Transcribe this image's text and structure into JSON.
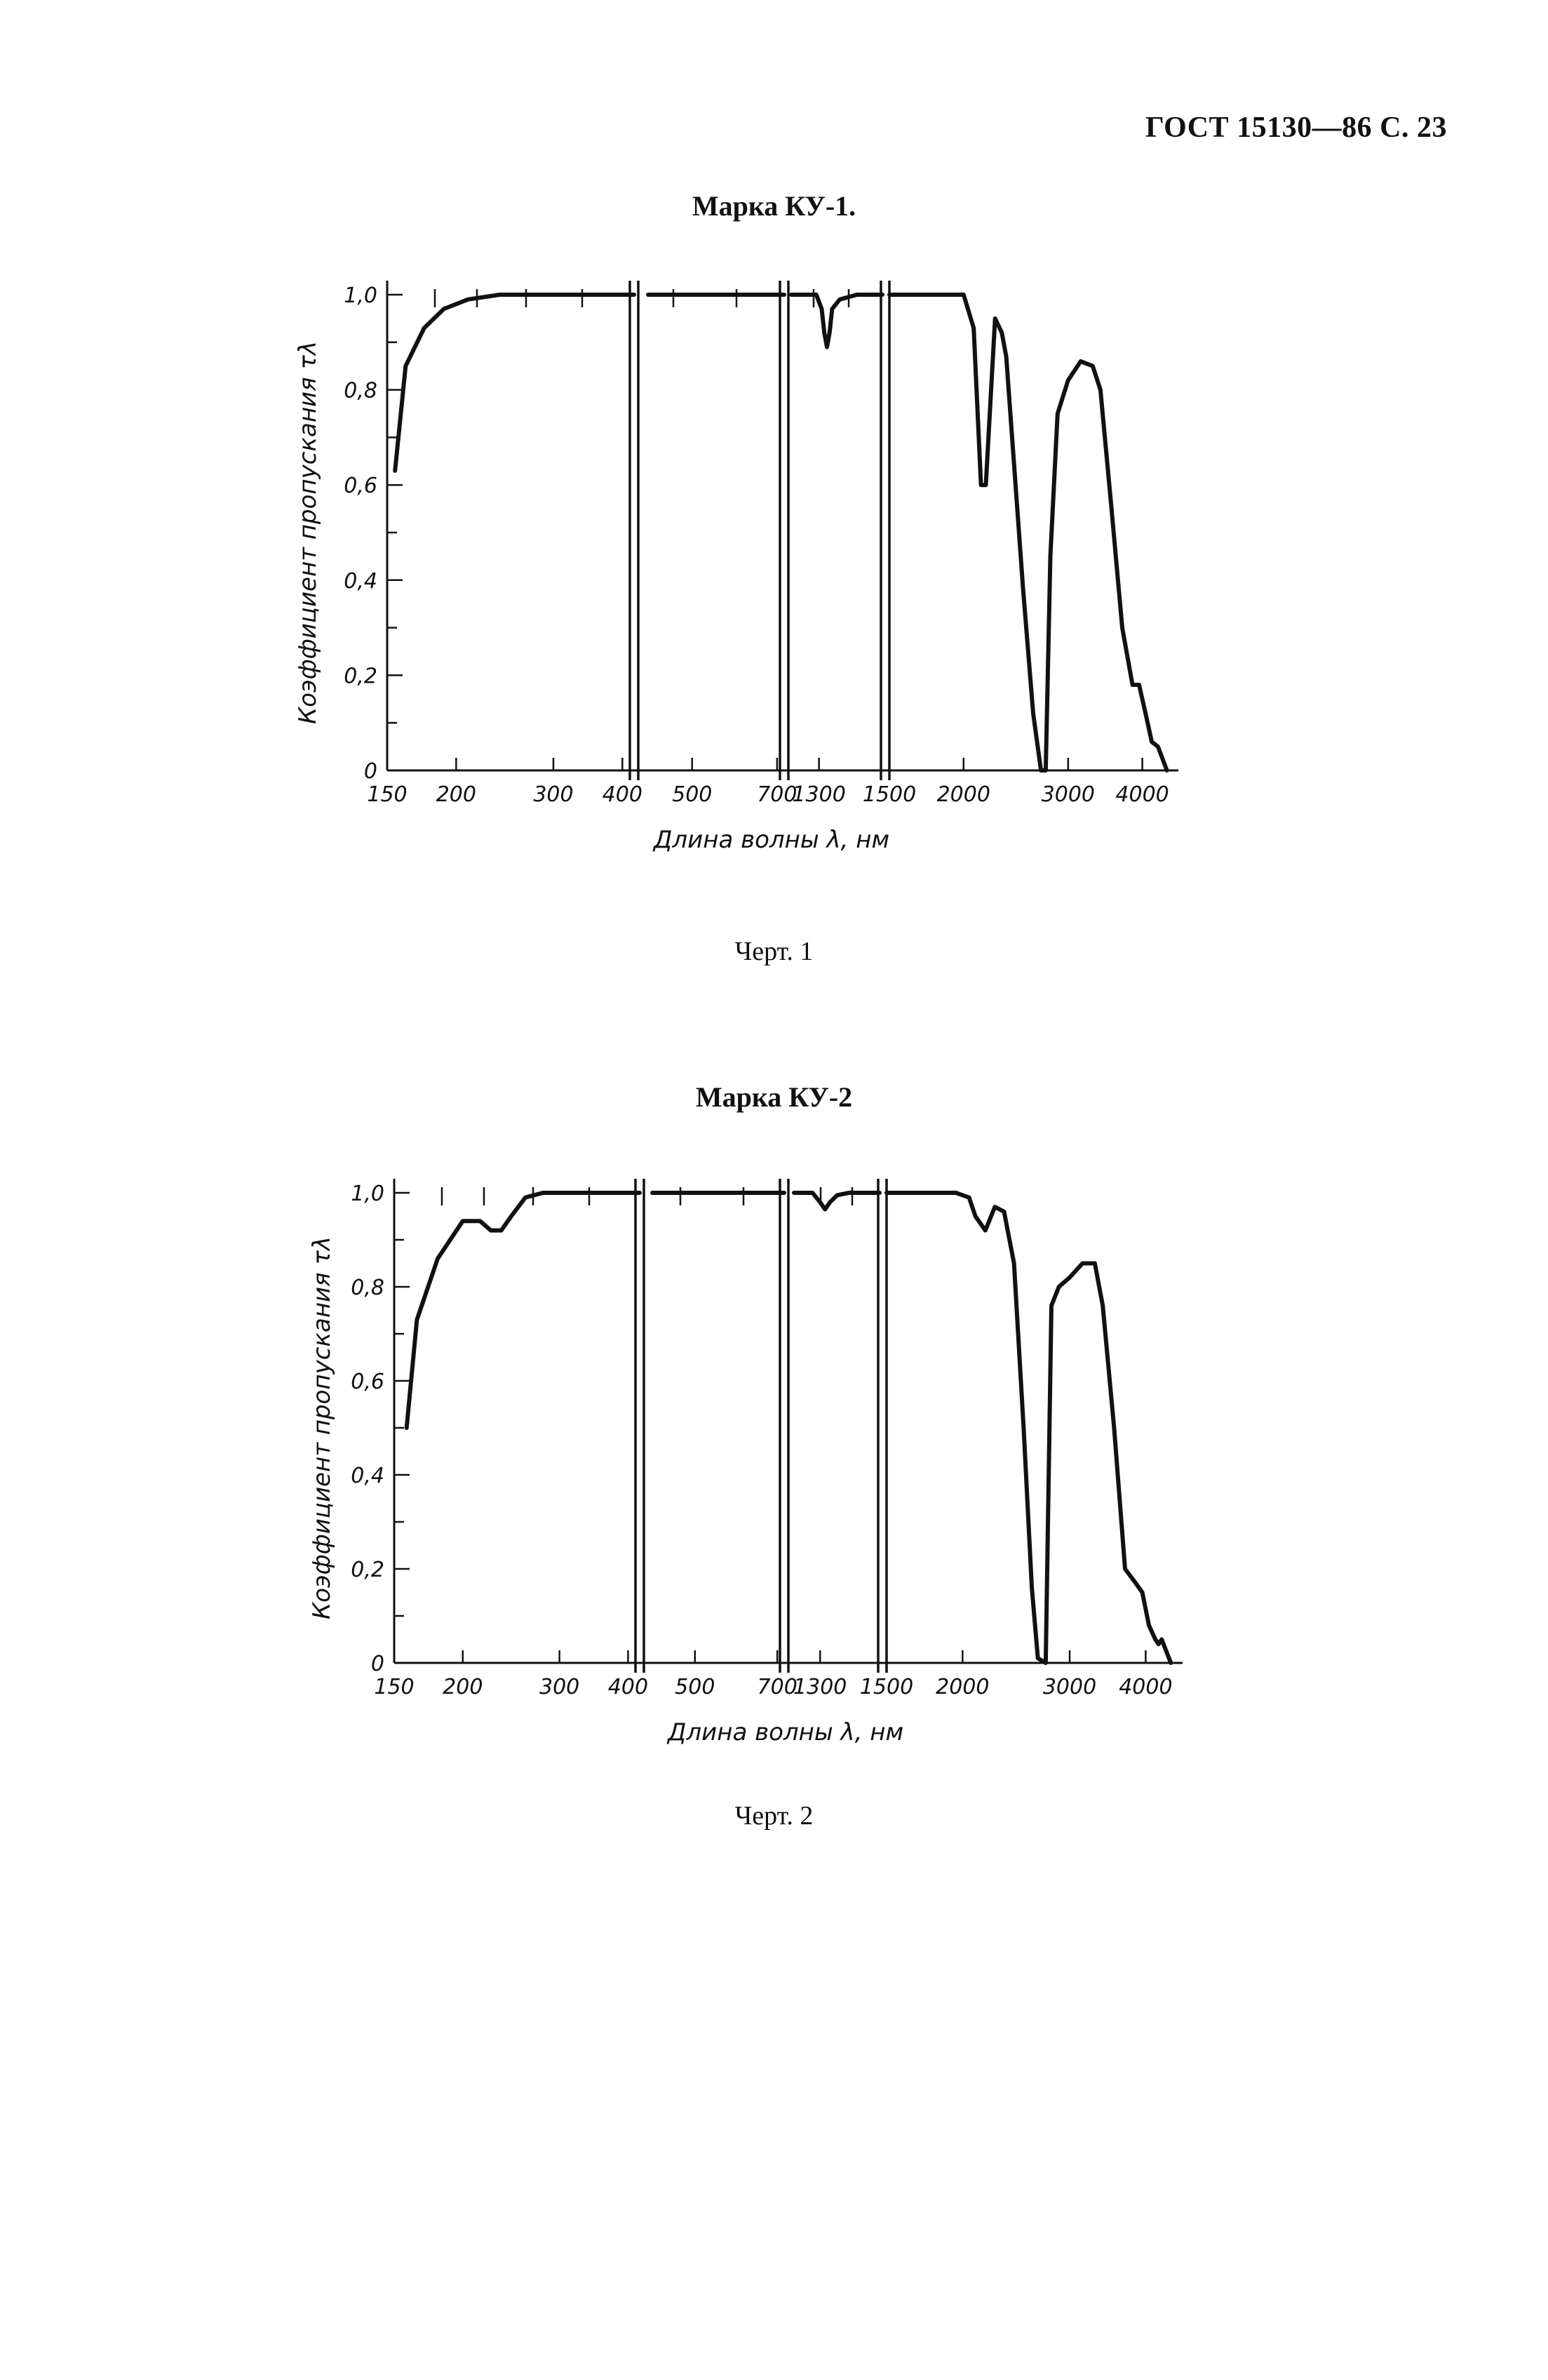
{
  "document": {
    "header": "ГОСТ 15130—86 С. 23",
    "captions": [
      "Черт. 1",
      "Черт. 2"
    ]
  },
  "chart_data": [
    {
      "type": "line",
      "title": "Марка КУ-1.",
      "xlabel": "Длина волны λ, нм",
      "ylabel": "Коэффициент пропускания τλ",
      "ylim": [
        0,
        1.0
      ],
      "yticks": [
        0,
        0.2,
        0.4,
        0.6,
        0.8,
        1.0
      ],
      "ytick_labels": [
        "0",
        "0,2",
        "0,4",
        "0,6",
        "0,8",
        "1,0"
      ],
      "segments": [
        {
          "xlim": [
            150,
            420
          ],
          "xticks": [
            150,
            200,
            300,
            400
          ],
          "xtick_labels": [
            "150",
            "200",
            "300",
            "400"
          ]
        },
        {
          "xlim": [
            420,
            720
          ],
          "xticks": [
            500,
            700
          ],
          "xtick_labels": [
            "500",
            "700"
          ]
        },
        {
          "xlim": [
            1200,
            1560
          ],
          "xticks": [
            1300
          ],
          "xtick_labels": [
            "1300"
          ]
        },
        {
          "xlim": [
            1500,
            4600
          ],
          "xticks": [
            1500,
            2000,
            3000,
            4000
          ],
          "xtick_labels": [
            "1500",
            "2000",
            "3000",
            "4000"
          ]
        }
      ],
      "series": [
        {
          "segment": 0,
          "x": [
            155,
            162,
            175,
            190,
            210,
            240,
            280,
            340,
            400,
            420
          ],
          "y": [
            0.63,
            0.85,
            0.93,
            0.97,
            0.99,
            1.0,
            1.0,
            1.0,
            1.0,
            1.0
          ]
        },
        {
          "segment": 1,
          "x": [
            420,
            500,
            600,
            720
          ],
          "y": [
            1.0,
            1.0,
            1.0,
            1.0
          ]
        },
        {
          "segment": 2,
          "x": [
            1200,
            1290,
            1310,
            1320,
            1330,
            1340,
            1350,
            1380,
            1450,
            1560
          ],
          "y": [
            1.0,
            1.0,
            0.97,
            0.92,
            0.89,
            0.92,
            0.97,
            0.99,
            1.0,
            1.0
          ]
        },
        {
          "segment": 3,
          "x": [
            1500,
            1800,
            2000,
            2080,
            2140,
            2180,
            2260,
            2320,
            2360,
            2440,
            2520,
            2620,
            2700,
            2750,
            2800,
            2880,
            3000,
            3150,
            3300,
            3400,
            3550,
            3700,
            3850,
            3950,
            4050,
            4150,
            4250,
            4400
          ],
          "y": [
            1.0,
            1.0,
            1.0,
            0.93,
            0.6,
            0.6,
            0.95,
            0.92,
            0.87,
            0.62,
            0.38,
            0.12,
            0.0,
            0.0,
            0.45,
            0.75,
            0.82,
            0.86,
            0.85,
            0.8,
            0.55,
            0.3,
            0.18,
            0.18,
            0.12,
            0.06,
            0.05,
            0.0
          ]
        }
      ]
    },
    {
      "type": "line",
      "title": "Марка КУ-2",
      "xlabel": "Длина волны λ, нм",
      "ylabel": "Коэффициент пропускания τλ",
      "ylim": [
        0,
        1.0
      ],
      "yticks": [
        0,
        0.2,
        0.4,
        0.6,
        0.8,
        1.0
      ],
      "ytick_labels": [
        "0",
        "0,2",
        "0,4",
        "0,6",
        "0,8",
        "1,0"
      ],
      "segments": [
        {
          "xlim": [
            150,
            420
          ],
          "xticks": [
            150,
            200,
            300,
            400
          ],
          "xtick_labels": [
            "150",
            "200",
            "300",
            "400"
          ]
        },
        {
          "xlim": [
            420,
            720
          ],
          "xticks": [
            500,
            700
          ],
          "xtick_labels": [
            "500",
            "700"
          ]
        },
        {
          "xlim": [
            1200,
            1560
          ],
          "xticks": [
            1300
          ],
          "xtick_labels": [
            "1300"
          ]
        },
        {
          "xlim": [
            1500,
            4600
          ],
          "xticks": [
            1500,
            2000,
            3000,
            4000
          ],
          "xtick_labels": [
            "1500",
            "2000",
            "3000",
            "4000"
          ]
        }
      ],
      "series": [
        {
          "segment": 0,
          "x": [
            158,
            165,
            180,
            200,
            215,
            225,
            235,
            245,
            260,
            280,
            320,
            400,
            420
          ],
          "y": [
            0.5,
            0.73,
            0.86,
            0.94,
            0.94,
            0.92,
            0.92,
            0.95,
            0.99,
            1.0,
            1.0,
            1.0,
            1.0
          ]
        },
        {
          "segment": 1,
          "x": [
            420,
            500,
            600,
            720
          ],
          "y": [
            1.0,
            1.0,
            1.0,
            1.0
          ]
        },
        {
          "segment": 2,
          "x": [
            1200,
            1270,
            1300,
            1320,
            1340,
            1370,
            1420,
            1560
          ],
          "y": [
            1.0,
            1.0,
            0.98,
            0.965,
            0.98,
            0.995,
            1.0,
            1.0
          ]
        },
        {
          "segment": 3,
          "x": [
            1500,
            1800,
            1950,
            2050,
            2100,
            2180,
            2260,
            2340,
            2430,
            2520,
            2600,
            2660,
            2740,
            2800,
            2880,
            3000,
            3150,
            3300,
            3400,
            3550,
            3700,
            3850,
            3950,
            4050,
            4150,
            4200,
            4250,
            4400
          ],
          "y": [
            1.0,
            1.0,
            1.0,
            0.99,
            0.95,
            0.92,
            0.97,
            0.96,
            0.85,
            0.5,
            0.16,
            0.01,
            0.0,
            0.76,
            0.8,
            0.82,
            0.85,
            0.85,
            0.76,
            0.5,
            0.2,
            0.17,
            0.15,
            0.08,
            0.05,
            0.04,
            0.05,
            0.0
          ]
        }
      ]
    }
  ]
}
